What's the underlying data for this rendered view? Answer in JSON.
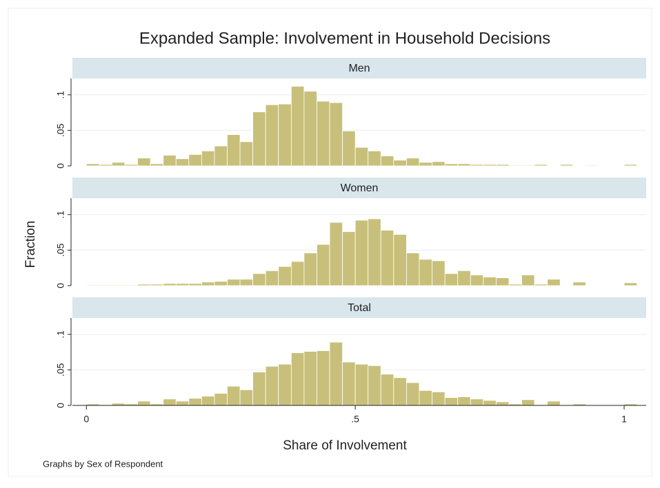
{
  "chart_data": {
    "type": "histogram",
    "title": "Expanded Sample: Involvement in Household Decisions",
    "x_label": "Share of Involvement",
    "y_label": "Fraction",
    "note": "Graphs by Sex of Respondent",
    "color": "#c8c07a",
    "grid": true,
    "xlim": [
      -0.026,
      1.041
    ],
    "xticks": [
      0,
      {
        "value": 0.5,
        "label": ".5"
      },
      1
    ],
    "ylim": [
      0,
      0.123
    ],
    "yticks": [
      0,
      {
        "value": 0.05,
        "label": ".05"
      },
      {
        "value": 0.1,
        "label": ".1"
      }
    ],
    "bins": [
      0,
      0.0238,
      0.0476,
      0.0714,
      0.0952,
      0.119,
      0.1429,
      0.1667,
      0.1905,
      0.2143,
      0.2381,
      0.2619,
      0.2857,
      0.3095,
      0.3333,
      0.3571,
      0.381,
      0.4048,
      0.4286,
      0.4524,
      0.4762,
      0.5,
      0.5238,
      0.5476,
      0.5714,
      0.5952,
      0.619,
      0.6429,
      0.6667,
      0.6905,
      0.7143,
      0.7381,
      0.7619,
      0.7857,
      0.8095,
      0.8333,
      0.8571,
      0.881,
      0.9048,
      0.9286,
      0.9524,
      0.9762,
      1,
      1.0238
    ],
    "panels": [
      {
        "name": "Men",
        "values": [
          0.003,
          0.002,
          0.005,
          0.002,
          0.011,
          0.003,
          0.015,
          0.01,
          0.016,
          0.021,
          0.028,
          0.044,
          0.034,
          0.076,
          0.086,
          0.087,
          0.112,
          0.105,
          0.091,
          0.089,
          0.049,
          0.026,
          0.021,
          0.014,
          0.008,
          0.011,
          0.005,
          0.006,
          0.003,
          0.003,
          0.002,
          0.002,
          0.002,
          0.001,
          0.001,
          0.002,
          0,
          0.002,
          0,
          0.001,
          0,
          0,
          0.002
        ]
      },
      {
        "name": "Women",
        "values": [
          0.001,
          0.001,
          0.001,
          0.001,
          0.002,
          0.002,
          0.003,
          0.003,
          0.003,
          0.005,
          0.006,
          0.009,
          0.009,
          0.017,
          0.021,
          0.027,
          0.034,
          0.046,
          0.058,
          0.089,
          0.076,
          0.092,
          0.094,
          0.078,
          0.072,
          0.046,
          0.037,
          0.035,
          0.017,
          0.021,
          0.015,
          0.012,
          0.011,
          0.002,
          0.015,
          0.002,
          0.009,
          0,
          0.005,
          0,
          0,
          0,
          0.004
        ]
      },
      {
        "name": "Total",
        "values": [
          0.002,
          0.001,
          0.003,
          0.002,
          0.006,
          0.002,
          0.009,
          0.006,
          0.01,
          0.013,
          0.017,
          0.027,
          0.022,
          0.047,
          0.055,
          0.058,
          0.074,
          0.076,
          0.077,
          0.089,
          0.061,
          0.058,
          0.056,
          0.044,
          0.039,
          0.032,
          0.021,
          0.019,
          0.011,
          0.012,
          0.009,
          0.007,
          0.005,
          0.002,
          0.008,
          0.001,
          0.006,
          0,
          0.002,
          0,
          0,
          0,
          0.002
        ]
      }
    ]
  }
}
